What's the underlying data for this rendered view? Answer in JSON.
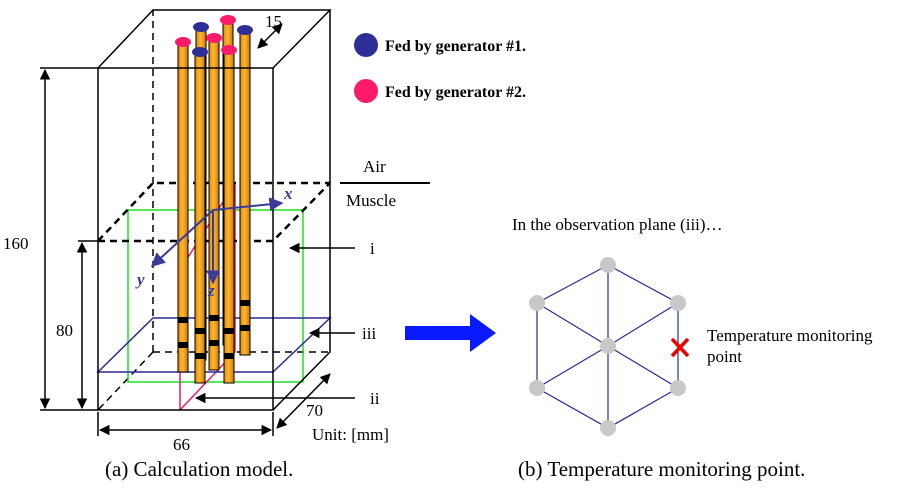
{
  "panel_a": {
    "caption": "(a) Calculation model.",
    "spacing": 15,
    "height_total": 160,
    "height_muscle": 80,
    "width": 66,
    "depth": 70,
    "legend": [
      "Fed by generator #1.",
      "Fed by generator #2."
    ],
    "layers": [
      "Air",
      "Muscle"
    ],
    "planes": [
      "i",
      "ii",
      "iii"
    ],
    "axes": [
      "x",
      "y",
      "z"
    ],
    "unit": "Unit: [mm]"
  },
  "panel_b": {
    "caption": "(b) Temperature monitoring point.",
    "heading": "In the observation plane (iii)…",
    "point_label": [
      "Temperature monitoring",
      "point"
    ]
  }
}
